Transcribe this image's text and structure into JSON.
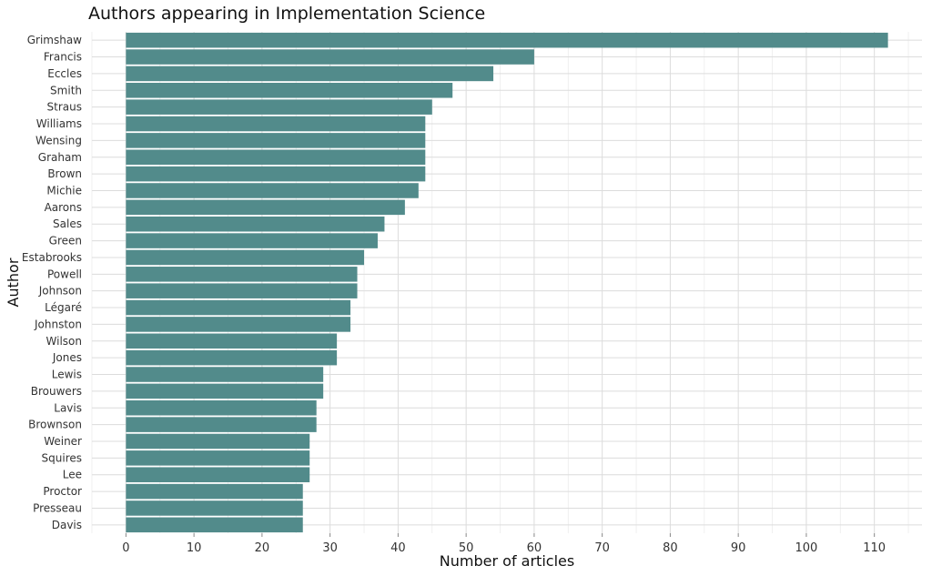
{
  "chart_data": {
    "type": "bar",
    "orientation": "horizontal",
    "title": "Authors appearing in Implementation Science",
    "xlabel": "Number of articles",
    "ylabel": "Author",
    "categories": [
      "Grimshaw",
      "Francis",
      "Eccles",
      "Smith",
      "Straus",
      "Williams",
      "Wensing",
      "Graham",
      "Brown",
      "Michie",
      "Aarons",
      "Sales",
      "Green",
      "Estabrooks",
      "Powell",
      "Johnson",
      "Légaré",
      "Johnston",
      "Wilson",
      "Jones",
      "Lewis",
      "Brouwers",
      "Lavis",
      "Brownson",
      "Weiner",
      "Squires",
      "Lee",
      "Proctor",
      "Presseau",
      "Davis"
    ],
    "values": [
      112,
      60,
      54,
      48,
      45,
      44,
      44,
      44,
      44,
      43,
      41,
      38,
      37,
      35,
      34,
      34,
      33,
      33,
      31,
      31,
      29,
      29,
      28,
      28,
      27,
      27,
      27,
      26,
      26,
      26
    ],
    "xticks": [
      0,
      10,
      20,
      30,
      40,
      50,
      60,
      70,
      80,
      90,
      100,
      110
    ],
    "xlim": [
      -5,
      117
    ],
    "bar_color": "#528b8b",
    "grid": true
  }
}
